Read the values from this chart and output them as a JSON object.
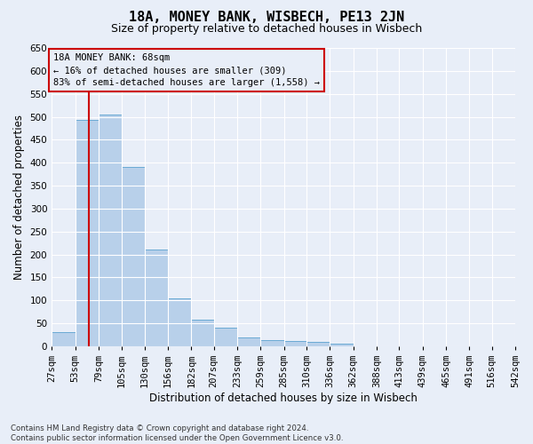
{
  "title": "18A, MONEY BANK, WISBECH, PE13 2JN",
  "subtitle": "Size of property relative to detached houses in Wisbech",
  "xlabel": "Distribution of detached houses by size in Wisbech",
  "ylabel": "Number of detached properties",
  "footer_line1": "Contains HM Land Registry data © Crown copyright and database right 2024.",
  "footer_line2": "Contains public sector information licensed under the Open Government Licence v3.0.",
  "bin_edges": [
    27,
    53,
    79,
    105,
    130,
    156,
    182,
    207,
    233,
    259,
    285,
    310,
    336,
    362,
    388,
    413,
    439,
    465,
    491,
    516,
    542
  ],
  "bar_heights": [
    30,
    494,
    504,
    390,
    210,
    105,
    57,
    40,
    20,
    13,
    12,
    10,
    5,
    0,
    0,
    0,
    0,
    0,
    0,
    0
  ],
  "bar_color": "#b8d0ea",
  "bar_edgecolor": "#6aaad4",
  "ylim": [
    0,
    650
  ],
  "yticks": [
    0,
    50,
    100,
    150,
    200,
    250,
    300,
    350,
    400,
    450,
    500,
    550,
    600,
    650
  ],
  "property_size": 68,
  "red_line_color": "#cc0000",
  "annotation_text": "18A MONEY BANK: 68sqm\n← 16% of detached houses are smaller (309)\n83% of semi-detached houses are larger (1,558) →",
  "annotation_box_color": "#cc0000",
  "background_color": "#e8eef8",
  "grid_color": "#ffffff",
  "tick_label_fontsize": 7.5,
  "title_fontsize": 11,
  "subtitle_fontsize": 9,
  "xlabel_fontsize": 8.5,
  "ylabel_fontsize": 8.5,
  "annotation_fontsize": 7.5,
  "footer_fontsize": 6.2
}
